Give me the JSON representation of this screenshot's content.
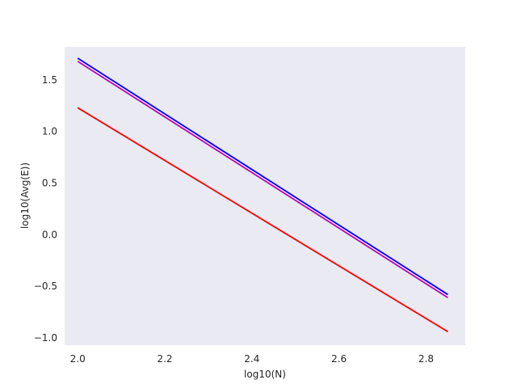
{
  "chart_data": {
    "type": "line",
    "title": "",
    "xlabel": "log10(N)",
    "ylabel": "log10(Avg(E))",
    "xlim": [
      1.97,
      2.89
    ],
    "ylim": [
      -1.07,
      1.82
    ],
    "xticks": [
      2.0,
      2.2,
      2.4,
      2.6,
      2.8
    ],
    "xtick_labels": [
      "2.0",
      "2.2",
      "2.4",
      "2.6",
      "2.8"
    ],
    "yticks": [
      -1.0,
      -0.5,
      0.0,
      0.5,
      1.0,
      1.5
    ],
    "ytick_labels": [
      "−1.0",
      "−0.5",
      "0.0",
      "0.5",
      "1.0",
      "1.5"
    ],
    "grid": false,
    "background": "#EAEAF2",
    "series": [
      {
        "color": "#0000FF",
        "x": [
          2.0,
          2.85
        ],
        "y": [
          1.71,
          -0.58
        ]
      },
      {
        "color": "#BF00BF",
        "x": [
          2.0,
          2.85
        ],
        "y": [
          1.68,
          -0.61
        ]
      },
      {
        "color": "#FF0000",
        "x": [
          2.0,
          2.85
        ],
        "y": [
          1.23,
          -0.94
        ]
      }
    ]
  }
}
